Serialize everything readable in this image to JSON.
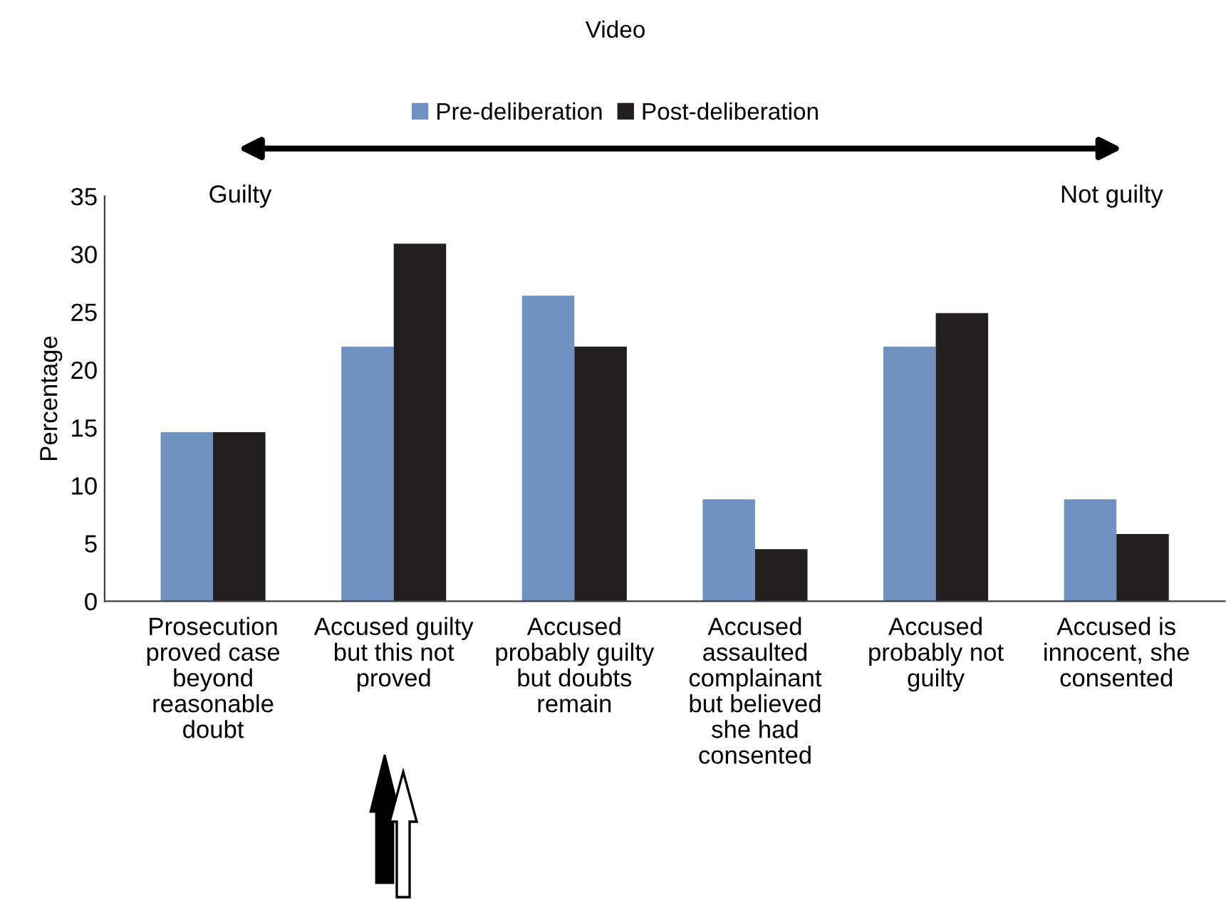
{
  "chart_data": {
    "type": "bar",
    "title": "Video",
    "ylabel": "Percentage",
    "categories": [
      "Prosecution\nproved case\nbeyond\nreasonable\ndoubt",
      "Accused guilty\nbut this not\nproved",
      "Accused\nprobably guilty\nbut doubts\nremain",
      "Accused\nassaulted\ncomplainant\nbut believed\nshe had\nconsented",
      "Accused\nprobably not\nguilty",
      "Accused is\ninnocent, she\nconsented"
    ],
    "series": [
      {
        "name": "Pre-deliberation",
        "color": "#7092c1",
        "values": [
          14.6,
          22.0,
          26.4,
          8.8,
          22.0,
          8.8
        ]
      },
      {
        "name": "Post-deliberation",
        "color": "#231f20",
        "values": [
          14.6,
          30.9,
          22.0,
          4.5,
          24.9,
          5.8
        ]
      }
    ],
    "ylim": [
      0,
      35
    ],
    "yticks": [
      0,
      5,
      10,
      15,
      20,
      25,
      30,
      35
    ],
    "grid": false,
    "legend": "top",
    "annotations": [
      "Guilty",
      "Not guilty"
    ]
  }
}
